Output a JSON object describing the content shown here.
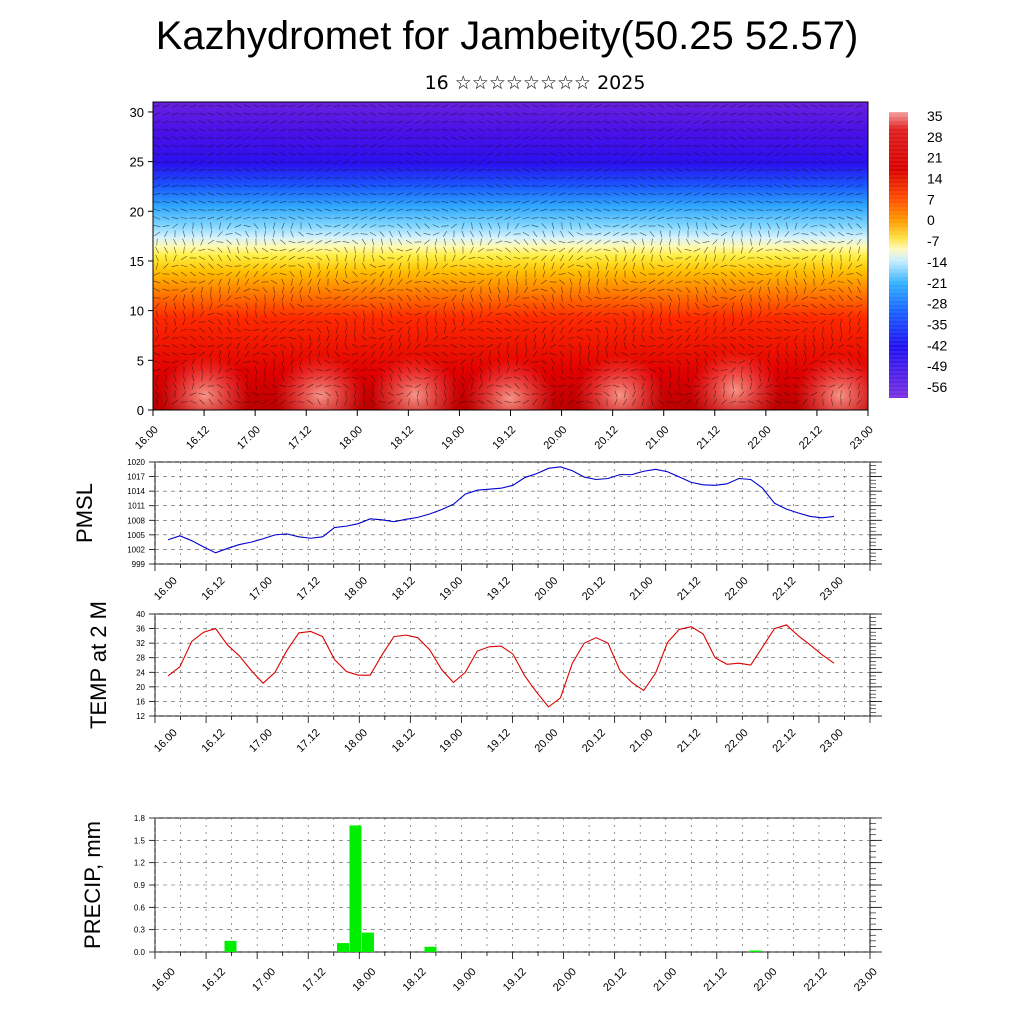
{
  "header": {
    "title": "Kazhydromet for Jambeity(50.25 52.57)",
    "subtitle": "16 ☆☆☆☆☆☆☆☆ 2025"
  },
  "time_labels": [
    "16.00",
    "16.12",
    "17.00",
    "17.12",
    "18.00",
    "18.12",
    "19.00",
    "19.12",
    "20.00",
    "20.12",
    "21.00",
    "21.12",
    "22.00",
    "22.12",
    "23.00"
  ],
  "colors": {
    "pmsl_line": "#0000cc",
    "temp_line": "#dd0000",
    "precip_bar": "#00ee00"
  },
  "chart_data": [
    {
      "type": "heatmap",
      "name": "vertical-cross-section",
      "title": "",
      "xlabel": "",
      "ylabel": "",
      "x": [
        "16.00",
        "16.12",
        "17.00",
        "17.12",
        "18.00",
        "18.12",
        "19.00",
        "19.12",
        "20.00",
        "20.12",
        "21.00",
        "21.12",
        "22.00",
        "22.12",
        "23.00"
      ],
      "ylim": [
        0,
        31
      ],
      "yticks": [
        0,
        5,
        10,
        15,
        20,
        25,
        30
      ],
      "colorbar": {
        "labels": [
          "35",
          "28",
          "21",
          "14",
          "7",
          "0",
          "-7",
          "-14",
          "-21",
          "-28",
          "-35",
          "-42",
          "-49",
          "-56"
        ],
        "levels": [
          35,
          28,
          21,
          14,
          7,
          0,
          -7,
          -14,
          -21,
          -28,
          -35,
          -42,
          -49,
          -56
        ]
      },
      "overlay": "wind arrows"
    },
    {
      "type": "line",
      "name": "pmsl",
      "ylabel": "PMSL",
      "ylim": [
        999,
        1020
      ],
      "yticks": [
        "999",
        "1002",
        "1005",
        "1008",
        "1011",
        "1014",
        "1017",
        "1020"
      ],
      "x_hours": [
        0,
        3,
        6,
        9,
        12,
        15,
        18,
        21,
        24,
        27,
        30,
        33,
        36,
        39,
        42,
        45,
        48,
        51,
        54,
        57,
        60,
        63,
        66,
        69,
        72,
        75,
        78,
        81,
        84,
        87,
        90,
        93,
        96,
        99,
        102,
        105,
        108,
        111,
        114,
        117,
        120,
        123,
        126,
        129,
        132,
        135,
        138,
        141,
        144,
        147,
        150,
        153,
        156,
        159,
        162,
        165,
        168
      ],
      "values": [
        1004,
        1004.8,
        1003.8,
        1002.5,
        1001.3,
        1002.2,
        1003,
        1003.5,
        1004.2,
        1005,
        1005.2,
        1004.6,
        1004.3,
        1004.6,
        1006.5,
        1006.8,
        1007.3,
        1008.3,
        1008.1,
        1007.7,
        1008.2,
        1008.6,
        1009.3,
        1010.2,
        1011.3,
        1013.4,
        1014.2,
        1014.4,
        1014.6,
        1015.2,
        1016.8,
        1017.6,
        1018.7,
        1019,
        1018.2,
        1016.9,
        1016.4,
        1016.6,
        1017.4,
        1017.4,
        1018.1,
        1018.5,
        1018,
        1016.9,
        1015.8,
        1015.3,
        1015.2,
        1015.5,
        1016.6,
        1016.4,
        1014.6,
        1011.5,
        1010.3,
        1009.5,
        1008.8,
        1008.5,
        1008.8
      ]
    },
    {
      "type": "line",
      "name": "temp-2m",
      "ylabel": "TEMP at 2 M",
      "ylim": [
        12,
        40
      ],
      "yticks": [
        "12",
        "16",
        "20",
        "24",
        "28",
        "32",
        "36",
        "40"
      ],
      "x_hours": [
        0,
        3,
        6,
        9,
        12,
        15,
        18,
        21,
        24,
        27,
        30,
        33,
        36,
        39,
        42,
        45,
        48,
        51,
        54,
        57,
        60,
        63,
        66,
        69,
        72,
        75,
        78,
        81,
        84,
        87,
        90,
        93,
        96,
        99,
        102,
        105,
        108,
        111,
        114,
        117,
        120,
        123,
        126,
        129,
        132,
        135,
        138,
        141,
        144,
        147,
        150,
        153,
        156,
        159,
        162,
        165,
        168
      ],
      "values": [
        23,
        25.5,
        32.5,
        35,
        36,
        31.5,
        28.5,
        24.5,
        21,
        24,
        30,
        34.8,
        35.2,
        33.8,
        27.5,
        24.2,
        23.2,
        23.2,
        28.8,
        33.8,
        34.2,
        33.5,
        30.2,
        24.8,
        21.2,
        24,
        29.8,
        31,
        31.2,
        29,
        23,
        18.5,
        14.5,
        17,
        26.5,
        32,
        33.5,
        32,
        24.5,
        21.2,
        19,
        23.8,
        32.2,
        35.8,
        36.5,
        34.5,
        28,
        26.2,
        26.5,
        26,
        31,
        36,
        37,
        34,
        31.5,
        28.8,
        26.5
      ]
    },
    {
      "type": "bar",
      "name": "precipitation",
      "ylabel": "PRECIP, mm",
      "ylim": [
        0,
        1.8
      ],
      "yticks": [
        "0.0",
        "0.3",
        "0.6",
        "0.9",
        "1.2",
        "1.5",
        "1.8"
      ],
      "x_hours": [
        15,
        42,
        45,
        48,
        63,
        141
      ],
      "values": [
        0.15,
        0.12,
        1.7,
        0.26,
        0.07,
        0.02
      ]
    }
  ]
}
